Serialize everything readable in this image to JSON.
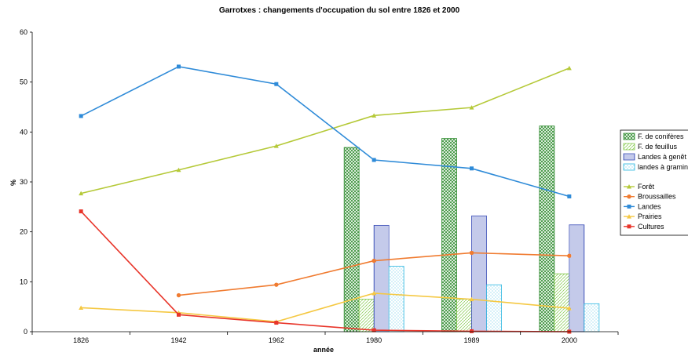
{
  "chart_data": {
    "type": "bar",
    "title": "Garrotxes : changements d'occupation du sol entre 1826 et 2000",
    "xlabel": "année",
    "ylabel": "%",
    "ylim": [
      0,
      60
    ],
    "yticks": [
      0,
      10,
      20,
      30,
      40,
      50,
      60
    ],
    "categories": [
      "1826",
      "1942",
      "1962",
      "1980",
      "1989",
      "2000"
    ],
    "grid": false,
    "legend_position": "right",
    "bar_series": [
      {
        "name": "F. de conifères",
        "color": "#2e8b2e",
        "pattern": "crosshatch",
        "values": [
          null,
          null,
          null,
          36.9,
          38.7,
          41.2
        ]
      },
      {
        "name": "F. de feuillus",
        "color": "#7fc846",
        "pattern": "diagonal",
        "values": [
          null,
          null,
          null,
          6.5,
          6.5,
          11.6
        ]
      },
      {
        "name": "Landes à genêt",
        "color": "#3b4fb8",
        "pattern": "vertical",
        "values": [
          null,
          null,
          null,
          21.3,
          23.2,
          21.4
        ]
      },
      {
        "name": "landes à graminées",
        "color": "#29b6e0",
        "pattern": "dots",
        "values": [
          null,
          null,
          null,
          13.1,
          9.4,
          5.6
        ]
      }
    ],
    "line_series": [
      {
        "name": "Forêt",
        "color": "#b5c938",
        "marker": "triangle",
        "values": [
          27.7,
          32.4,
          37.2,
          43.3,
          44.9,
          52.8
        ]
      },
      {
        "name": "Broussailles",
        "color": "#f07b30",
        "marker": "circle",
        "values": [
          null,
          7.3,
          9.4,
          14.2,
          15.8,
          15.2
        ]
      },
      {
        "name": "Landes",
        "color": "#2f8bd8",
        "marker": "square",
        "values": [
          43.2,
          53.1,
          49.6,
          34.4,
          32.7,
          27.1
        ]
      },
      {
        "name": "Prairies",
        "color": "#f5c842",
        "marker": "triangle",
        "values": [
          4.8,
          3.8,
          2.0,
          7.7,
          6.5,
          4.7
        ]
      },
      {
        "name": "Cultures",
        "color": "#e8352a",
        "marker": "square",
        "values": [
          24.1,
          3.4,
          1.8,
          0.3,
          0.1,
          0.0
        ]
      }
    ]
  }
}
